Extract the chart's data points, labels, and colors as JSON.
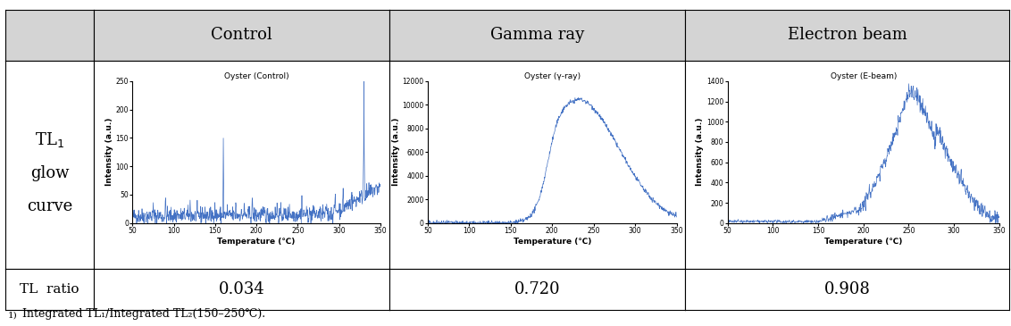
{
  "col_headers": [
    "Control",
    "Gamma ray",
    "Electron beam"
  ],
  "row_header_lines": [
    "TL₁",
    "glow",
    "curve"
  ],
  "tl_ratio_label": "TL  ratio",
  "tl_ratio_values": [
    "0.034",
    "0.720",
    "0.908"
  ],
  "footnote_super": "1)",
  "footnote_main": "Integrated TL₁/Integrated TL₂(150–250℃).",
  "plot_titles": [
    "Oyster (Control)",
    "Oyster (γ-ray)",
    "Oyster (E-beam)"
  ],
  "xlabel": "Temperature (℃)",
  "ylabel": "Intensity (a.u.)",
  "control_ylim": [
    0,
    250
  ],
  "gamma_ylim": [
    0,
    12000
  ],
  "ebeam_ylim": [
    0,
    1400
  ],
  "control_yticks": [
    0,
    50,
    100,
    150,
    200,
    250
  ],
  "gamma_yticks": [
    0,
    2000,
    4000,
    6000,
    8000,
    10000,
    12000
  ],
  "ebeam_yticks": [
    0,
    200,
    400,
    600,
    800,
    1000,
    1200,
    1400
  ],
  "xlim": [
    50,
    350
  ],
  "xticks": [
    50,
    100,
    150,
    200,
    250,
    300,
    350
  ],
  "line_color": "#4472C4",
  "header_bg": "#d4d4d4",
  "border_color": "#000000",
  "fig_width": 11.32,
  "fig_height": 3.65,
  "fig_dpi": 100
}
